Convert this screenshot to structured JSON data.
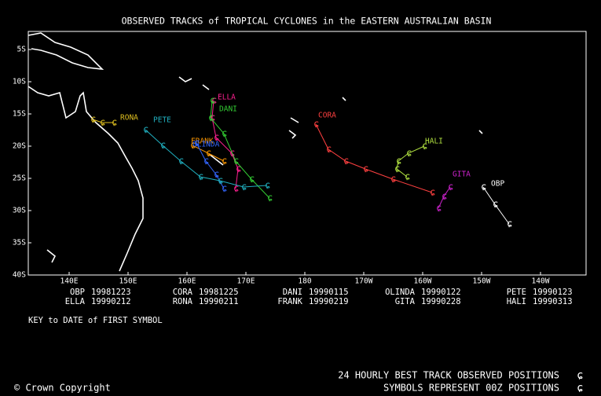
{
  "title": "OBSERVED TRACKS of TROPICAL CYCLONES in the EASTERN AUSTRALIAN BASIN",
  "map": {
    "lon_ticks": [
      {
        "value": 140,
        "label": "140E"
      },
      {
        "value": 150,
        "label": "150E"
      },
      {
        "value": 160,
        "label": "160E"
      },
      {
        "value": 170,
        "label": "170E"
      },
      {
        "value": 180,
        "label": "180"
      },
      {
        "value": 190,
        "label": "170W"
      },
      {
        "value": 200,
        "label": "160W"
      },
      {
        "value": 210,
        "label": "150W"
      },
      {
        "value": 220,
        "label": "140W"
      }
    ],
    "lat_ticks": [
      {
        "value": -5,
        "label": "5S"
      },
      {
        "value": -10,
        "label": "10S"
      },
      {
        "value": -15,
        "label": "15S"
      },
      {
        "value": -20,
        "label": "20S"
      },
      {
        "value": -25,
        "label": "25S"
      },
      {
        "value": -30,
        "label": "30S"
      },
      {
        "value": -35,
        "label": "35S"
      },
      {
        "value": -40,
        "label": "40S"
      }
    ]
  },
  "storms": [
    {
      "name": "OBP",
      "color": "#ffffff"
    },
    {
      "name": "CORA",
      "color": "#ff4040"
    },
    {
      "name": "ELLA",
      "color": "#ff2090"
    },
    {
      "name": "DANI",
      "color": "#33cc33"
    },
    {
      "name": "FRANK",
      "color": "#ff9900"
    },
    {
      "name": "OLINDA",
      "color": "#3366ff"
    },
    {
      "name": "RONA",
      "color": "#e0c020"
    },
    {
      "name": "PETE",
      "color": "#20b0c0"
    },
    {
      "name": "HALI",
      "color": "#b0e040"
    },
    {
      "name": "GITA",
      "color": "#cc22cc"
    }
  ],
  "key": [
    {
      "name": "OBP",
      "date": "19981223"
    },
    {
      "name": "ELLA",
      "date": "19990212"
    },
    {
      "name": "CORA",
      "date": "19981225"
    },
    {
      "name": "RONA",
      "date": "19990211"
    },
    {
      "name": "DANI",
      "date": "19990115"
    },
    {
      "name": "FRANK",
      "date": "19990219"
    },
    {
      "name": "OLINDA",
      "date": "19990122"
    },
    {
      "name": "GITA",
      "date": "19990228"
    },
    {
      "name": "PETE",
      "date": "19990123"
    },
    {
      "name": "HALI",
      "date": "19990313"
    }
  ],
  "key_note": "KEY to DATE of FIRST SYMBOL",
  "footer": {
    "copyright": "© Crown Copyright",
    "line1": "24 HOURLY BEST TRACK OBSERVED POSITIONS",
    "line2": "SYMBOLS REPRESENT 00Z POSITIONS"
  }
}
